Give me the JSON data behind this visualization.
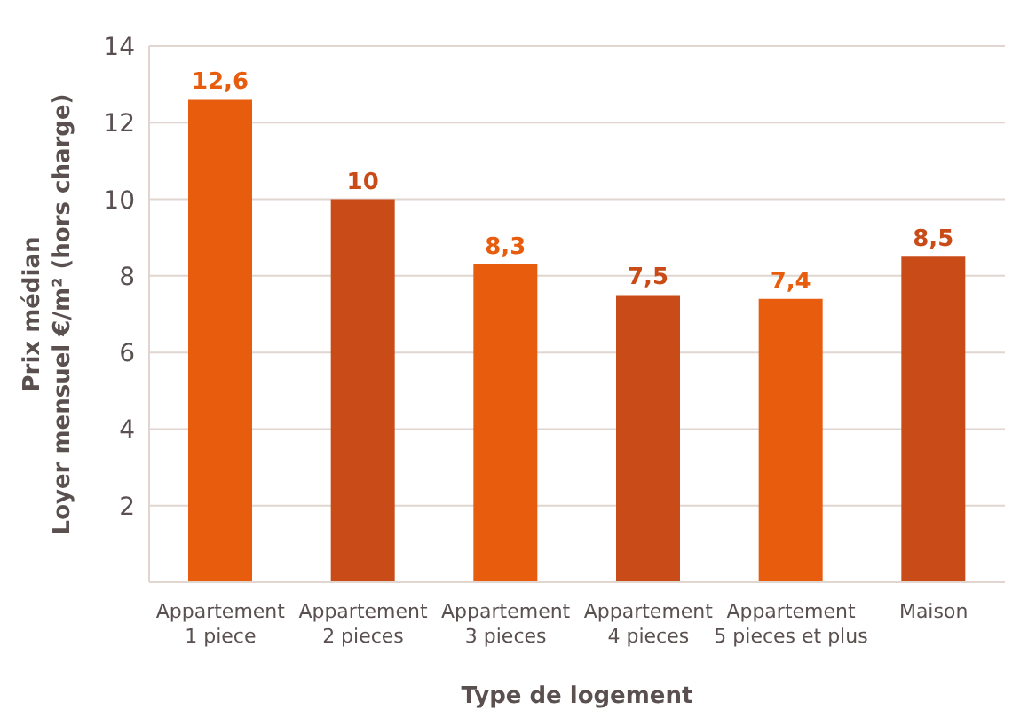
{
  "chart_data": {
    "type": "bar",
    "xlabel": "Type de logement",
    "ylabel": "Prix médian\nLoyer mensuel €/m² (hors charge)",
    "categories": [
      "Appartement\n1 piece",
      "Appartement\n2 pieces",
      "Appartement\n3 pieces",
      "Appartement\n4 pieces",
      "Appartement\n5 pieces et plus",
      "Maison"
    ],
    "values": [
      12.6,
      10,
      8.3,
      7.5,
      7.4,
      8.5
    ],
    "value_labels": [
      "12,6",
      "10",
      "8,3",
      "7,5",
      "7,4",
      "8,5"
    ],
    "colors": [
      "#e85c0d",
      "#c94c18",
      "#e85c0d",
      "#c94c18",
      "#e85c0d",
      "#c94c18"
    ],
    "ylim": [
      0,
      14
    ],
    "yticks": [
      2,
      4,
      6,
      8,
      10,
      12,
      14
    ],
    "grid": "y"
  }
}
